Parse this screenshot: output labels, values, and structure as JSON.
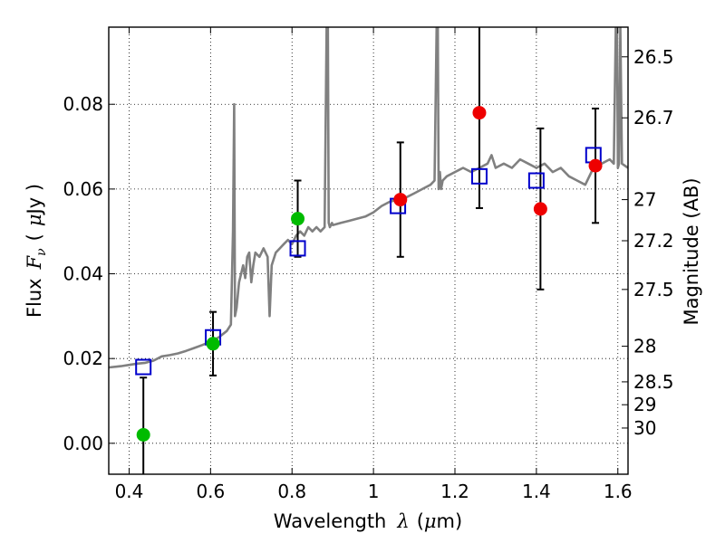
{
  "chart_data": {
    "type": "scatter",
    "xlabel_prefix": "Wavelength",
    "xlabel_symbol": "λ",
    "xlabel_unit_open": "(",
    "xlabel_unit_mu": "μ",
    "xlabel_unit_rest": "m)",
    "ylabel_prefix": "Flux",
    "ylabel_symbol": "F",
    "ylabel_subscript": "ν",
    "ylabel_unit_open": "(",
    "ylabel_unit_mu": "μ",
    "ylabel_unit_rest": "Jy )",
    "y2label": "Magnitude (AB)",
    "xlim": [
      0.35,
      1.625
    ],
    "ylim": [
      -0.0073,
      0.0982
    ],
    "grid": true,
    "xticks": [
      0.4,
      0.6,
      0.8,
      1.0,
      1.2,
      1.4,
      1.6
    ],
    "xtick_labels": [
      "0.4",
      "0.6",
      "0.8",
      "1",
      "1.2",
      "1.4",
      "1.6"
    ],
    "yticks": [
      0.0,
      0.02,
      0.04,
      0.06,
      0.08
    ],
    "ytick_labels": [
      "0.00",
      "0.02",
      "0.04",
      "0.06",
      "0.08"
    ],
    "mag_ticks": [
      {
        "label": "26.5",
        "flux": 0.0912
      },
      {
        "label": "26.7",
        "flux": 0.0768
      },
      {
        "label": "27",
        "flux": 0.0575
      },
      {
        "label": "27.2",
        "flux": 0.0478
      },
      {
        "label": "27.5",
        "flux": 0.0363
      },
      {
        "label": "28",
        "flux": 0.0229
      },
      {
        "label": "28.5",
        "flux": 0.0145
      },
      {
        "label": "29",
        "flux": 0.0091
      },
      {
        "label": "30",
        "flux": 0.0036
      }
    ],
    "series": [
      {
        "name": "model spectrum",
        "kind": "line",
        "color": "#808080",
        "x": [
          0.35,
          0.38,
          0.4,
          0.42,
          0.44,
          0.46,
          0.47,
          0.48,
          0.5,
          0.52,
          0.54,
          0.56,
          0.58,
          0.6,
          0.62,
          0.64,
          0.65,
          0.655,
          0.658,
          0.66,
          0.664,
          0.67,
          0.68,
          0.685,
          0.69,
          0.695,
          0.7,
          0.705,
          0.71,
          0.72,
          0.73,
          0.74,
          0.745,
          0.75,
          0.76,
          0.77,
          0.78,
          0.79,
          0.8,
          0.81,
          0.82,
          0.83,
          0.84,
          0.85,
          0.86,
          0.87,
          0.88,
          0.885,
          0.888,
          0.89,
          0.893,
          0.898,
          0.9,
          0.92,
          0.94,
          0.96,
          0.98,
          1.0,
          1.02,
          1.04,
          1.06,
          1.08,
          1.1,
          1.12,
          1.14,
          1.15,
          1.155,
          1.158,
          1.16,
          1.163,
          1.166,
          1.17,
          1.18,
          1.2,
          1.22,
          1.24,
          1.26,
          1.28,
          1.29,
          1.3,
          1.32,
          1.34,
          1.36,
          1.38,
          1.4,
          1.42,
          1.44,
          1.46,
          1.48,
          1.5,
          1.52,
          1.54,
          1.56,
          1.58,
          1.59,
          1.595,
          1.598,
          1.6,
          1.603,
          1.606,
          1.61,
          1.625
        ],
        "y": [
          0.0179,
          0.0182,
          0.0185,
          0.0188,
          0.019,
          0.0195,
          0.02,
          0.0205,
          0.0208,
          0.0212,
          0.0218,
          0.0225,
          0.0232,
          0.024,
          0.025,
          0.0265,
          0.028,
          0.05,
          0.08,
          0.03,
          0.032,
          0.038,
          0.042,
          0.039,
          0.044,
          0.045,
          0.038,
          0.042,
          0.045,
          0.044,
          0.046,
          0.044,
          0.03,
          0.042,
          0.045,
          0.046,
          0.047,
          0.048,
          0.047,
          0.049,
          0.05,
          0.049,
          0.051,
          0.05,
          0.051,
          0.05,
          0.051,
          0.0982,
          0.0982,
          0.052,
          0.051,
          0.052,
          0.0515,
          0.052,
          0.0525,
          0.053,
          0.0535,
          0.0545,
          0.056,
          0.057,
          0.0575,
          0.058,
          0.059,
          0.06,
          0.061,
          0.062,
          0.0982,
          0.0982,
          0.06,
          0.064,
          0.06,
          0.062,
          0.063,
          0.064,
          0.065,
          0.064,
          0.065,
          0.066,
          0.068,
          0.065,
          0.066,
          0.065,
          0.067,
          0.066,
          0.065,
          0.066,
          0.064,
          0.065,
          0.063,
          0.062,
          0.061,
          0.065,
          0.066,
          0.067,
          0.066,
          0.0982,
          0.0982,
          0.065,
          0.066,
          0.0982,
          0.066,
          0.065
        ]
      },
      {
        "name": "model photometry",
        "kind": "markers",
        "marker": "square",
        "color": "#0000cc",
        "x": [
          0.435,
          0.606,
          0.814,
          1.06,
          1.26,
          1.4,
          1.54
        ],
        "y": [
          0.018,
          0.025,
          0.046,
          0.056,
          0.063,
          0.062,
          0.068
        ]
      },
      {
        "name": "observed (green)",
        "kind": "markers",
        "marker": "circle",
        "color": "#00bb00",
        "x": [
          0.435,
          0.606,
          0.814
        ],
        "y": [
          0.002,
          0.0235,
          0.053
        ],
        "yerr": [
          0.0135,
          0.0075,
          0.009
        ]
      },
      {
        "name": "observed (red)",
        "kind": "markers",
        "marker": "circle",
        "color": "#ee0000",
        "x": [
          1.066,
          1.26,
          1.41,
          1.545
        ],
        "y": [
          0.0575,
          0.078,
          0.0553,
          0.0655
        ],
        "yerr": [
          0.0135,
          0.0225,
          0.019,
          0.0135
        ]
      }
    ]
  }
}
